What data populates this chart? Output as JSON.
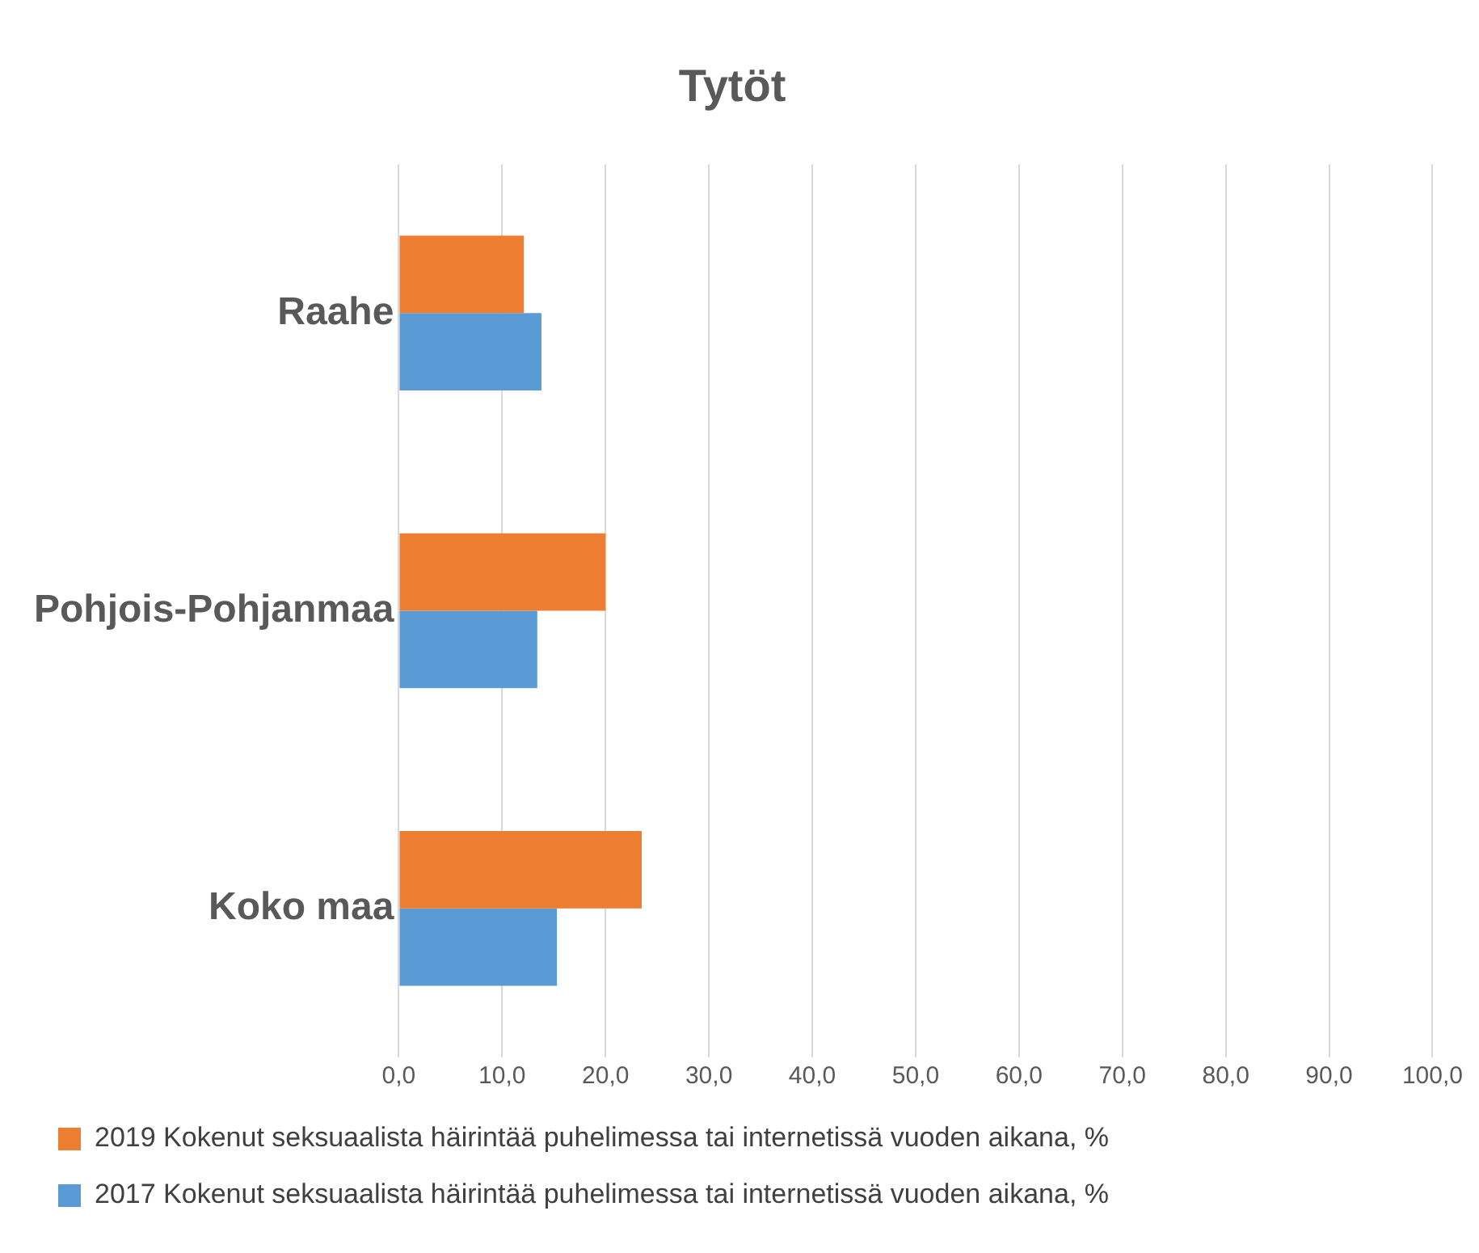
{
  "chart_data": {
    "type": "bar",
    "orientation": "horizontal",
    "title": "Tytöt",
    "categories": [
      "Raahe",
      "Pohjois-Pohjanmaa",
      "Koko maa"
    ],
    "series": [
      {
        "name": "2019 Kokenut seksuaalista häirintää puhelimessa tai internetissä vuoden aikana, %",
        "color": "#ed7d31",
        "values": [
          12.1,
          20.0,
          23.5
        ]
      },
      {
        "name": "2017 Kokenut seksuaalista häirintää puhelimessa tai internetissä vuoden aikana, %",
        "color": "#5b9bd5",
        "values": [
          13.8,
          13.4,
          15.3
        ]
      }
    ],
    "xlim": [
      0,
      100
    ],
    "xticks": [
      {
        "value": 0,
        "label": "0,0"
      },
      {
        "value": 10,
        "label": "10,0"
      },
      {
        "value": 20,
        "label": "20,0"
      },
      {
        "value": 30,
        "label": "30,0"
      },
      {
        "value": 40,
        "label": "40,0"
      },
      {
        "value": 50,
        "label": "50,0"
      },
      {
        "value": 60,
        "label": "60,0"
      },
      {
        "value": 70,
        "label": "70,0"
      },
      {
        "value": 80,
        "label": "80,0"
      },
      {
        "value": 90,
        "label": "90,0"
      },
      {
        "value": 100,
        "label": "100,0"
      }
    ],
    "grid": "x",
    "legend": "bottom"
  }
}
